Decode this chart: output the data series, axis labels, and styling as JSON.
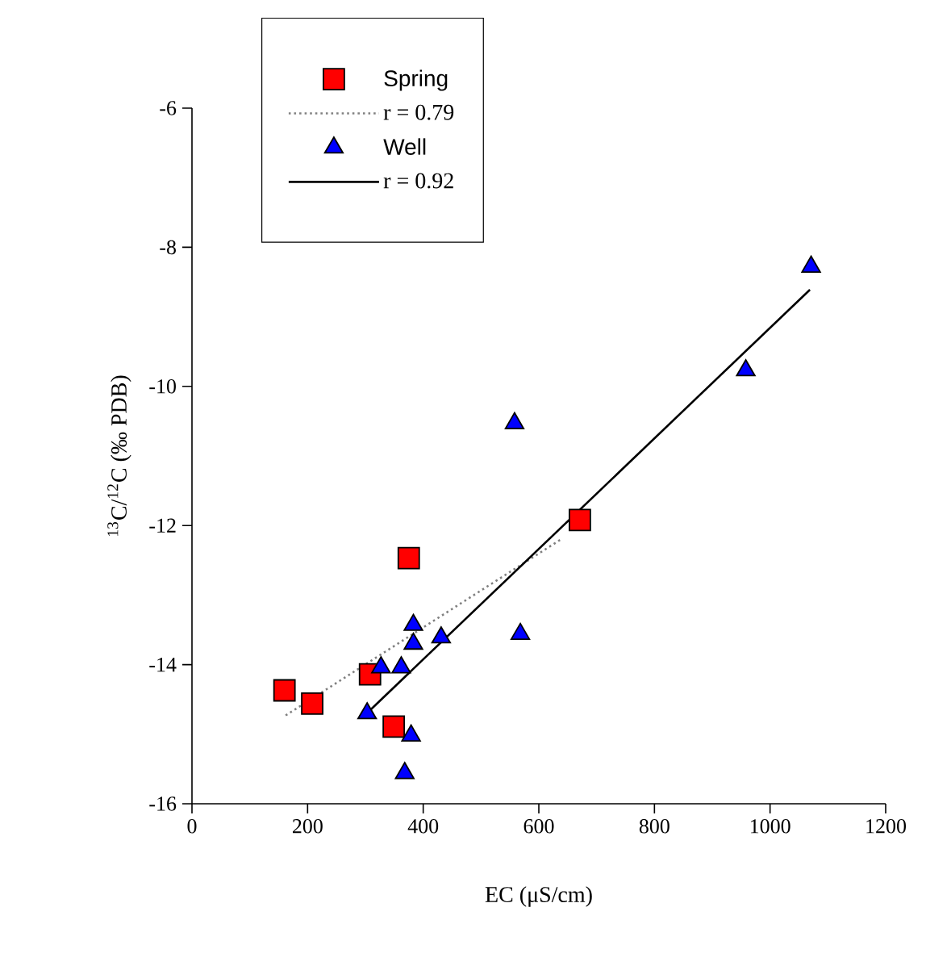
{
  "chart_data": {
    "type": "scatter",
    "xlabel": "EC (μS/cm)",
    "ylabel": "$^{13}$C/$^{12}$C (‰ PDB)",
    "xlim": [
      0,
      1200
    ],
    "ylim": [
      -16,
      -6
    ],
    "xticks": [
      0,
      200,
      400,
      600,
      800,
      1000,
      1200
    ],
    "yticks": [
      -16,
      -14,
      -12,
      -10,
      -8,
      -6
    ],
    "legend": "top left",
    "grid": false,
    "series": [
      {
        "name": "Spring",
        "marker": "square",
        "color": "#ff0000",
        "x": [
          160,
          208,
          308,
          375,
          349,
          671
        ],
        "values": [
          -14.37,
          -14.56,
          -14.14,
          -12.47,
          -14.89,
          -11.92
        ]
      },
      {
        "name": "r = 0.79",
        "type": "line",
        "line_style": "dotted",
        "color": "#808080",
        "x": [
          162,
          640
        ],
        "values": [
          -14.73,
          -12.19
        ]
      },
      {
        "name": "Well",
        "marker": "triangle",
        "color": "#0000ff",
        "x": [
          383,
          383,
          431,
          327,
          362,
          303,
          379,
          368,
          568,
          558,
          958,
          1071
        ],
        "values": [
          -13.43,
          -13.7,
          -13.61,
          -14.04,
          -14.04,
          -14.7,
          -15.02,
          -15.56,
          -13.56,
          -10.53,
          -9.77,
          -8.28
        ]
      },
      {
        "name": "r = 0.92",
        "type": "line",
        "line_style": "solid",
        "color": "#000000",
        "x": [
          310,
          1069
        ],
        "values": [
          -14.64,
          -8.61
        ]
      }
    ]
  }
}
